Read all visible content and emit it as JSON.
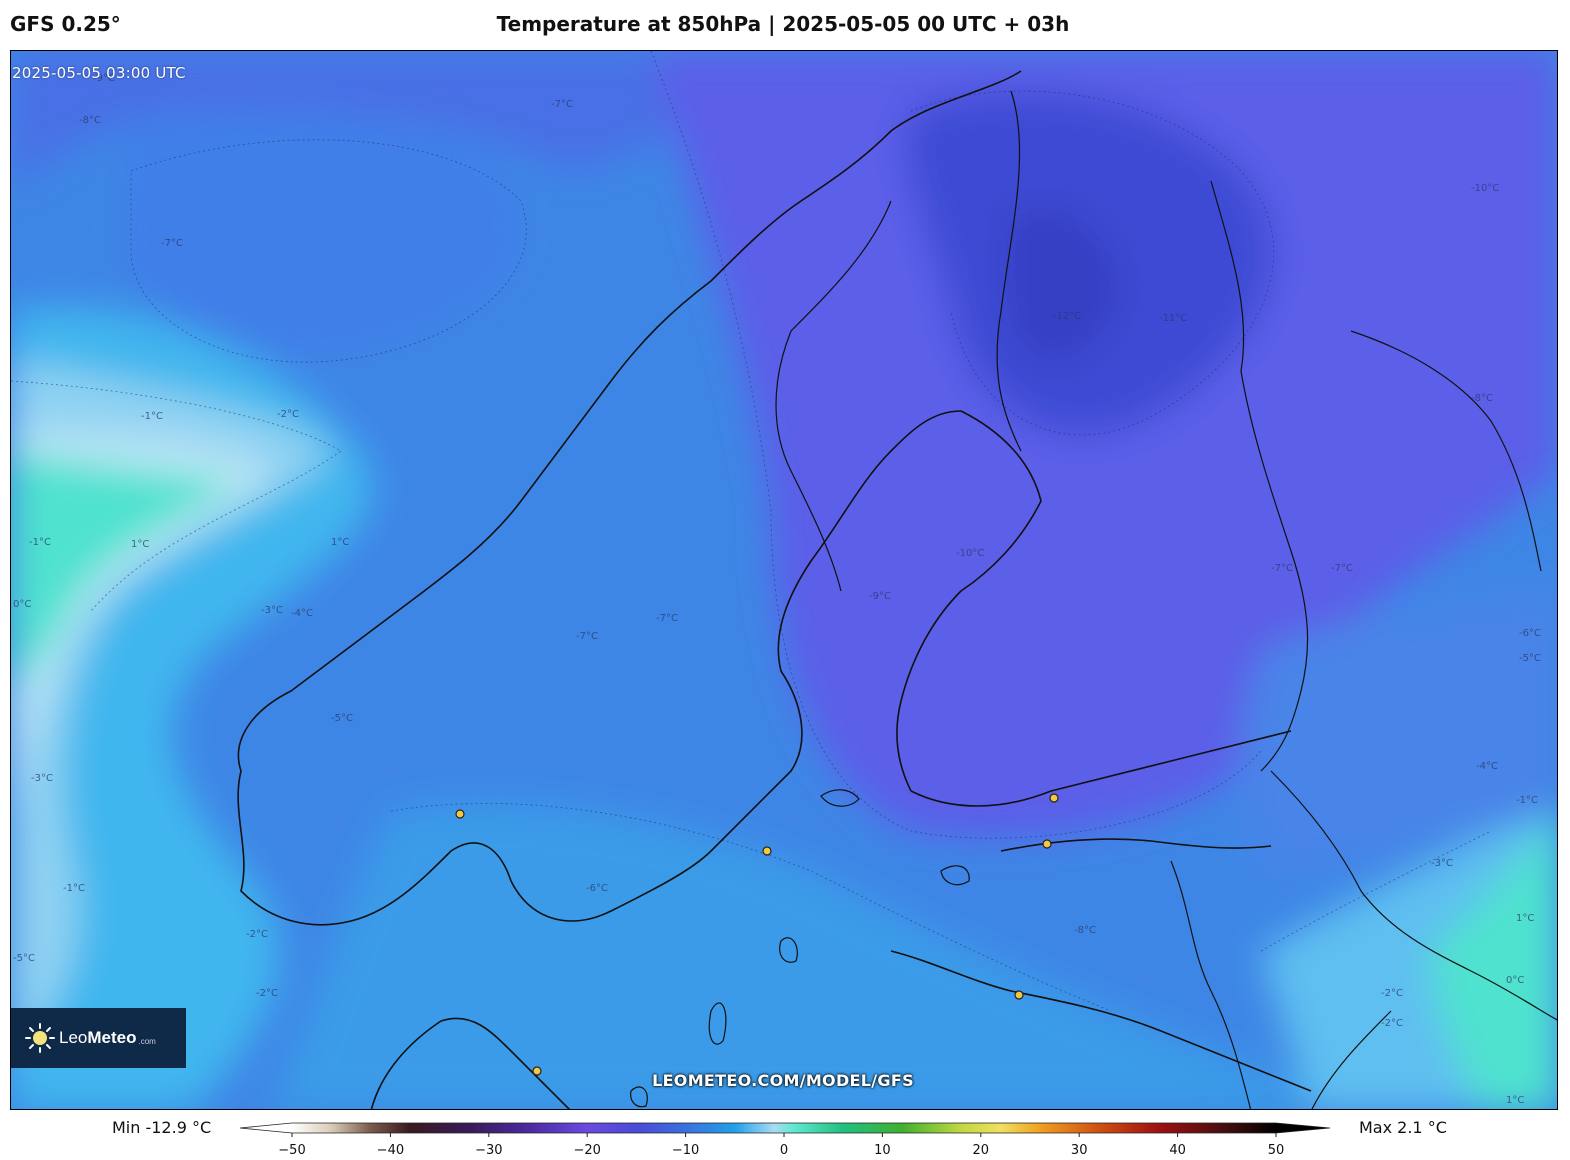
{
  "header": {
    "model": "GFS 0.25°",
    "title": "Temperature at 850hPa | 2025-05-05 00 UTC + 03h"
  },
  "map": {
    "valid_time": "2025-05-05 03:00 UTC",
    "watermark": "LEOMETEO.COM/MODEL/GFS",
    "contour_labels": [
      "-9°C",
      "-8°C",
      "-7°C",
      "-7°C",
      "-1°C",
      "-2°C",
      "-1°C",
      "1°C",
      "0°C",
      "1°C",
      "-3°C",
      "-4°C",
      "-5°C",
      "-7°C",
      "-3°C",
      "-7°C",
      "-6°C",
      "-1°C",
      "-2°C",
      "-5°C",
      "-2°C",
      "-9°C",
      "-10°C",
      "-12°C",
      "-11°C",
      "-10°C",
      "-8°C",
      "-7°C",
      "-7°C",
      "-6°C",
      "-5°C",
      "-4°C",
      "-1°C",
      "-3°C",
      "-2°C",
      "1°C",
      "0°C",
      "-2°C",
      "1°C",
      "-8°C"
    ],
    "city_markers": 6,
    "colors": {
      "cold_deep": "#3e4bd4",
      "cold": "#5c5ee8",
      "mid": "#4a78e8",
      "mild": "#2f8fe6",
      "light": "#3fb6ee",
      "pale": "#bfe6f7",
      "teal": "#4fe2cf",
      "coast": "#111111",
      "city": "#f5c842"
    }
  },
  "logo": {
    "brand_light": "Leo",
    "brand_bold": "Meteo",
    "domain": ".com"
  },
  "legend": {
    "min_label": "Min -12.9 °C",
    "max_label": "Max 2.1 °C",
    "unit": "°C",
    "range": [
      -50,
      50
    ],
    "ticks": [
      "−50",
      "−40",
      "−30",
      "−20",
      "−10",
      "0",
      "10",
      "20",
      "30",
      "40",
      "50"
    ],
    "stops": [
      {
        "t": -50,
        "c": "#ffffff"
      },
      {
        "t": -46,
        "c": "#d9cbb8"
      },
      {
        "t": -42,
        "c": "#7a5a4a"
      },
      {
        "t": -38,
        "c": "#3a1a20"
      },
      {
        "t": -32,
        "c": "#3a1a5a"
      },
      {
        "t": -26,
        "c": "#4a2aa0"
      },
      {
        "t": -20,
        "c": "#6a4ae0"
      },
      {
        "t": -15,
        "c": "#4a4ad8"
      },
      {
        "t": -10,
        "c": "#3a70e0"
      },
      {
        "t": -5,
        "c": "#20a0e8"
      },
      {
        "t": -1,
        "c": "#a8dcf4"
      },
      {
        "t": 1,
        "c": "#60e8d0"
      },
      {
        "t": 6,
        "c": "#20c080"
      },
      {
        "t": 12,
        "c": "#40b030"
      },
      {
        "t": 18,
        "c": "#c0d840"
      },
      {
        "t": 22,
        "c": "#f0e060"
      },
      {
        "t": 26,
        "c": "#f0a020"
      },
      {
        "t": 32,
        "c": "#d05010"
      },
      {
        "t": 38,
        "c": "#a01010"
      },
      {
        "t": 44,
        "c": "#501010"
      },
      {
        "t": 50,
        "c": "#000000"
      }
    ]
  }
}
